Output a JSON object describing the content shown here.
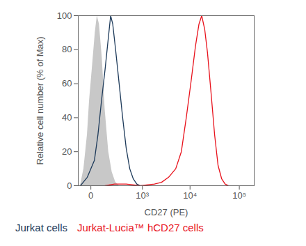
{
  "chart_data": {
    "type": "line",
    "xlabel": "CD27 (PE)",
    "ylabel": "Relative cell number (% of Max)",
    "log": "x",
    "xlim": [
      -80,
      200000
    ],
    "xticks": [
      0,
      {
        "value": 1000,
        "label": "10³"
      },
      {
        "value": 10000,
        "label": "10⁴"
      },
      {
        "value": 100000,
        "label": "10⁵"
      }
    ],
    "ylim": [
      0,
      100
    ],
    "yticks": [
      0,
      20,
      40,
      60,
      80,
      100
    ],
    "legend": "bottom",
    "series": [
      {
        "type": "area",
        "color": "#c8c8c8",
        "x": [
          -63,
          -39,
          -18,
          -7,
          7,
          22,
          34,
          48,
          69,
          93,
          128,
          168,
          216,
          273
        ],
        "values": [
          0,
          10,
          30,
          50,
          70,
          90,
          100,
          95,
          75,
          45,
          20,
          8,
          2,
          0
        ]
      },
      {
        "name": "Jurkat cells",
        "type": "line",
        "color": "#1d3a5a",
        "x": [
          -63,
          -18,
          18,
          39,
          64,
          93,
          113,
          135,
          151,
          177,
          216,
          273,
          339,
          418,
          511,
          620,
          750,
          897
        ],
        "values": [
          0,
          5,
          15,
          30,
          50,
          68,
          80,
          92,
          100,
          95,
          80,
          60,
          40,
          22,
          10,
          4,
          1,
          0
        ]
      },
      {
        "name": "Jurkat-Lucia™ hCD27 cells",
        "type": "line",
        "color": "#e8121c",
        "x": [
          93,
          200,
          418,
          900,
          1830,
          2580,
          3630,
          5090,
          6640,
          8380,
          10570,
          12900,
          15200,
          17300,
          19900,
          22700,
          26700,
          31600,
          37100,
          44000,
          51700,
          60700
        ],
        "values": [
          0,
          1,
          1,
          0,
          1,
          2,
          5,
          10,
          20,
          40,
          62,
          82,
          95,
          100,
          92,
          78,
          55,
          30,
          12,
          4,
          1,
          0
        ]
      }
    ]
  }
}
